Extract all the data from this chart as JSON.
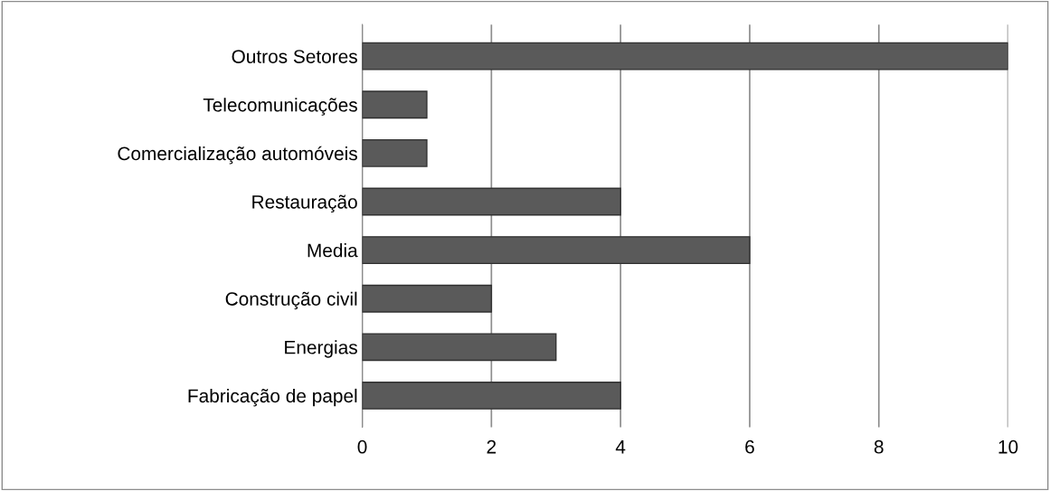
{
  "chart_data": {
    "type": "bar",
    "orientation": "horizontal",
    "categories": [
      "Outros Setores",
      "Telecomunicações",
      "Comercialização automóveis",
      "Restauração",
      "Media",
      "Construção civil",
      "Energias",
      "Fabricação de papel"
    ],
    "values": [
      10,
      1,
      1,
      4,
      6,
      2,
      3,
      4
    ],
    "color": "#5a5a5a",
    "xlim": [
      0,
      10
    ],
    "xticks": [
      0,
      2,
      4,
      6,
      8,
      10
    ],
    "grid": "x"
  }
}
